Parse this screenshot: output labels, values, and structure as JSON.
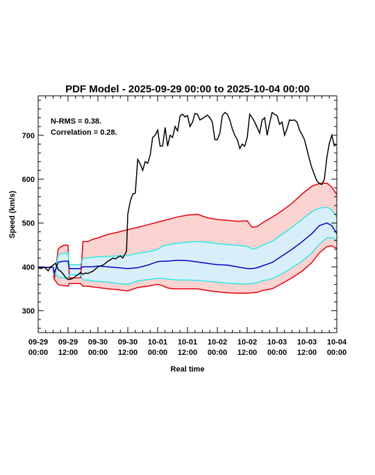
{
  "chart_data": {
    "type": "line",
    "title": "PDF Model - 2025-09-29 00:00 to 2025-10-04 00:00",
    "xlabel": "Real time",
    "ylabel": "Speed (km/s)",
    "xlim": [
      0,
      120
    ],
    "ylim": [
      250,
      790
    ],
    "x_ticks": [
      {
        "x": 0,
        "line1": "09-29",
        "line2": "00:00"
      },
      {
        "x": 12,
        "line1": "09-29",
        "line2": "12:00"
      },
      {
        "x": 24,
        "line1": "09-30",
        "line2": "00:00"
      },
      {
        "x": 36,
        "line1": "09-30",
        "line2": "12:00"
      },
      {
        "x": 48,
        "line1": "10-01",
        "line2": "00:00"
      },
      {
        "x": 60,
        "line1": "10-01",
        "line2": "12:00"
      },
      {
        "x": 72,
        "line1": "10-02",
        "line2": "00:00"
      },
      {
        "x": 84,
        "line1": "10-02",
        "line2": "12:00"
      },
      {
        "x": 96,
        "line1": "10-03",
        "line2": "00:00"
      },
      {
        "x": 108,
        "line1": "10-03",
        "line2": "12:00"
      },
      {
        "x": 120,
        "line1": "10-04",
        "line2": "00:00"
      }
    ],
    "y_ticks": [
      300,
      400,
      500,
      600,
      700
    ],
    "annotations": [
      "N-RMS = 0.38.",
      "Correlation = 0.28."
    ],
    "colors": {
      "observed": "#000000",
      "outer": "#e8000b",
      "inner": "#2ee8e8",
      "median": "#0000cc",
      "outer_fill": "#fbd3d0",
      "inner_fill": "#d8effa"
    },
    "model_x": [
      0,
      3,
      6,
      6.5,
      8,
      9,
      9.5,
      10,
      11,
      12,
      12.5,
      15,
      17,
      18,
      20,
      22,
      24,
      28,
      32,
      36,
      40,
      44,
      48,
      50,
      52,
      54,
      56,
      60,
      64,
      68,
      72,
      76,
      80,
      84,
      86,
      88,
      90,
      94,
      98,
      102,
      106,
      110,
      113,
      116,
      118,
      120
    ],
    "model": {
      "upper95": [
        399,
        399,
        399,
        371,
        438,
        441,
        441,
        444,
        445,
        444,
        375,
        375,
        375,
        396,
        396,
        400,
        402,
        410,
        413,
        420,
        440,
        446,
        450,
        454,
        458,
        462,
        465,
        468,
        472,
        476,
        480,
        486,
        490,
        492,
        466,
        468,
        472,
        480,
        490,
        500,
        512,
        528,
        535,
        535,
        532,
        525
      ],
      "upper80": [
        399,
        399,
        399,
        382,
        422,
        425,
        425,
        426,
        426,
        427,
        390,
        390,
        390,
        410,
        410,
        413,
        414,
        419,
        422,
        427,
        429,
        431,
        433,
        434,
        436,
        437,
        437,
        436,
        434,
        432,
        430,
        430,
        429,
        428,
        410,
        411,
        415,
        420,
        430,
        440,
        452,
        470,
        483,
        488,
        487,
        483
      ],
      "median": [
        399,
        399,
        399,
        386,
        408,
        410,
        410,
        411,
        411,
        412,
        396,
        396,
        396,
        401,
        401,
        403,
        404,
        404,
        404,
        406,
        408,
        410,
        412,
        413,
        414,
        414,
        414,
        413,
        411,
        409,
        408,
        406,
        403,
        400,
        394,
        395,
        398,
        405,
        415,
        425,
        437,
        455,
        470,
        478,
        478,
        474
      ],
      "lower80": [
        399,
        399,
        399,
        388,
        403,
        405,
        405,
        406,
        406,
        407,
        398,
        398,
        398,
        391,
        391,
        391,
        392,
        391,
        390,
        388,
        385,
        383,
        381,
        380,
        379,
        378,
        378,
        377,
        375,
        373,
        371,
        368,
        365,
        362,
        364,
        366,
        369,
        375,
        385,
        396,
        408,
        426,
        441,
        452,
        453,
        450
      ],
      "lower95": [
        399,
        399,
        399,
        389,
        396,
        398,
        398,
        399,
        399,
        399,
        398,
        398,
        398,
        388,
        388,
        386,
        385,
        382,
        379,
        376,
        373,
        370,
        367,
        366,
        365,
        364,
        363,
        362,
        360,
        357,
        354,
        351,
        348,
        345,
        347,
        349,
        352,
        357,
        367,
        378,
        390,
        408,
        424,
        434,
        436,
        433
      ]
    },
    "outer_upper": [
      399,
      399,
      399,
      371,
      440,
      446,
      446,
      449,
      450,
      449,
      375,
      375,
      375,
      458,
      458,
      463,
      466,
      474,
      479,
      485,
      490,
      496,
      502,
      505,
      508,
      511,
      514,
      518,
      520,
      512,
      508,
      506,
      504,
      505,
      490,
      492,
      500,
      513,
      528,
      545,
      566,
      584,
      590,
      591,
      582,
      565
    ],
    "outer_lower": [
      399,
      399,
      399,
      371,
      360,
      358,
      358,
      357,
      357,
      356,
      362,
      362,
      362,
      356,
      356,
      354,
      353,
      350,
      348,
      345,
      353,
      356,
      360,
      357,
      352,
      350,
      350,
      350,
      350,
      346,
      343,
      341,
      340,
      340,
      341,
      342,
      346,
      350,
      362,
      375,
      390,
      410,
      432,
      446,
      448,
      442
    ],
    "inner_upper": [
      399,
      399,
      399,
      382,
      427,
      430,
      430,
      431,
      431,
      432,
      405,
      405,
      405,
      420,
      420,
      422,
      423,
      424,
      425,
      426,
      431,
      434,
      440,
      448,
      450,
      452,
      454,
      456,
      458,
      456,
      453,
      451,
      449,
      447,
      440,
      443,
      449,
      458,
      474,
      490,
      508,
      526,
      534,
      536,
      530,
      513
    ],
    "inner_lower": [
      399,
      399,
      399,
      388,
      378,
      376,
      376,
      375,
      375,
      374,
      382,
      382,
      382,
      370,
      370,
      368,
      367,
      365,
      362,
      360,
      368,
      371,
      374,
      374,
      372,
      371,
      370,
      370,
      369,
      367,
      365,
      363,
      361,
      361,
      362,
      364,
      368,
      373,
      384,
      398,
      413,
      432,
      452,
      466,
      467,
      461
    ],
    "median_line": [
      399,
      399,
      399,
      386,
      410,
      412,
      412,
      413,
      413,
      413,
      396,
      396,
      396,
      400,
      400,
      400,
      402,
      400,
      398,
      396,
      398,
      404,
      412,
      413,
      413,
      414,
      415,
      414,
      411,
      408,
      405,
      404,
      400,
      396,
      396,
      398,
      402,
      410,
      425,
      440,
      457,
      476,
      494,
      500,
      494,
      476
    ],
    "observed": {
      "x": [
        0,
        1,
        2,
        3,
        4,
        5,
        6,
        7,
        8,
        9,
        10,
        11,
        12,
        13,
        14,
        15,
        16,
        17,
        18,
        19,
        20,
        21,
        22,
        23,
        24,
        25,
        26,
        27,
        28,
        29,
        30,
        31,
        32,
        33,
        34,
        35,
        35.5,
        36,
        37,
        38,
        39,
        40,
        41,
        42,
        43,
        44,
        45,
        46,
        47,
        48,
        49,
        50,
        51,
        52,
        53,
        54,
        55,
        56,
        57,
        58,
        59,
        60,
        61,
        62,
        63,
        64,
        65,
        66,
        67,
        68,
        69,
        70,
        71,
        72,
        73,
        74,
        75,
        76,
        77,
        78,
        79,
        80,
        81,
        82,
        83,
        84,
        85,
        86,
        87,
        88,
        89,
        90,
        91,
        92,
        93,
        94,
        95,
        96,
        97,
        98,
        99,
        100,
        101,
        102,
        103,
        104,
        105,
        106,
        107,
        108,
        109,
        110,
        111,
        112,
        113,
        114,
        115,
        116,
        117,
        118,
        119,
        120
      ],
      "y": [
        398,
        396,
        399,
        397,
        391,
        400,
        404,
        408,
        394,
        390,
        384,
        376,
        371,
        372,
        374,
        379,
        382,
        387,
        383,
        386,
        385,
        388,
        390,
        395,
        400,
        402,
        404,
        408,
        413,
        416,
        420,
        418,
        422,
        425,
        420,
        430,
        436,
        520,
        550,
        566,
        568,
        645,
        635,
        620,
        640,
        636,
        655,
        695,
        700,
        712,
        675,
        676,
        718,
        675,
        700,
        695,
        720,
        710,
        744,
        748,
        742,
        745,
        720,
        730,
        750,
        748,
        735,
        738,
        742,
        746,
        740,
        730,
        690,
        690,
        705,
        745,
        752,
        748,
        735,
        715,
        700,
        690,
        670,
        680,
        675,
        695,
        748,
        740,
        730,
        718,
        705,
        735,
        740,
        700,
        728,
        752,
        748,
        745,
        725,
        730,
        700,
        715,
        735,
        734,
        735,
        730,
        712,
        702,
        690,
        668,
        645,
        625,
        610,
        596,
        590,
        588,
        600,
        650,
        682,
        700,
        676,
        680
      ]
    }
  }
}
